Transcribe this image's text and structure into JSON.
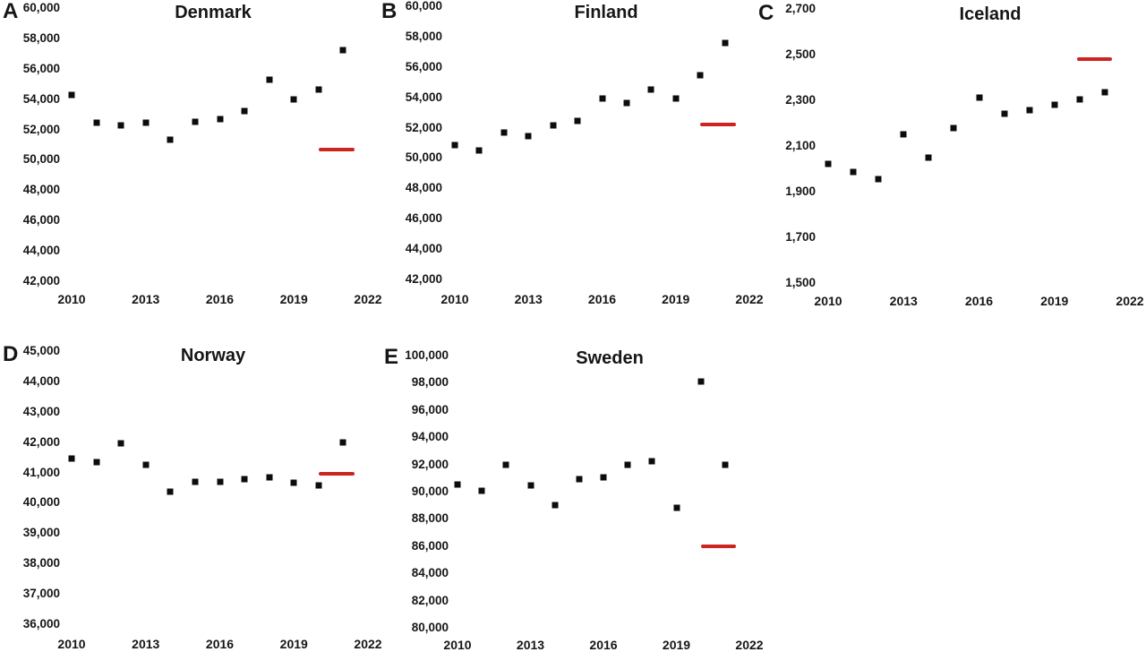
{
  "style": {
    "background": "#ffffff",
    "text_color": "#161616",
    "marker_color": "#0c0c0c",
    "reference_line_color": "#cc2420"
  },
  "chart_data": [
    {
      "type": "scatter",
      "panel_label": "A",
      "title": "Denmark",
      "marker": "black-square",
      "x": [
        2010,
        2011,
        2012,
        2013,
        2014,
        2015,
        2016,
        2017,
        2018,
        2019,
        2020,
        2021
      ],
      "values": [
        54300,
        52450,
        52250,
        52450,
        51350,
        52500,
        52700,
        53200,
        55250,
        54000,
        54650,
        57250
      ],
      "reference_line": {
        "value": 50700,
        "from_year": 2020.0,
        "to_year": 2021.45
      },
      "xlim": [
        2010,
        2022
      ],
      "ylim": [
        42000,
        60000
      ],
      "y_tick_labels": [
        "60,000",
        "58,000",
        "56,000",
        "54,000",
        "52,000",
        "50,000",
        "48,000",
        "46,000",
        "44,000",
        "42,000"
      ],
      "x_tick_years": [
        2010,
        2013,
        2016,
        2019,
        2022
      ],
      "x_tick_labels": [
        "2010",
        "2013",
        "2016",
        "2019",
        "2022"
      ],
      "grid": false,
      "legend": "none"
    },
    {
      "type": "scatter",
      "panel_label": "B",
      "title": "Finland",
      "marker": "black-square",
      "x": [
        2010,
        2011,
        2012,
        2013,
        2014,
        2015,
        2016,
        2017,
        2018,
        2019,
        2020,
        2021
      ],
      "values": [
        50850,
        50500,
        51700,
        51450,
        52150,
        52450,
        53900,
        53650,
        54500,
        53900,
        55450,
        57600
      ],
      "reference_line": {
        "value": 52200,
        "from_year": 2020.0,
        "to_year": 2021.45
      },
      "xlim": [
        2010,
        2022
      ],
      "ylim": [
        42000,
        60000
      ],
      "y_tick_labels": [
        "60,000",
        "58,000",
        "56,000",
        "54,000",
        "52,000",
        "50,000",
        "48,000",
        "46,000",
        "44,000",
        "42,000"
      ],
      "x_tick_years": [
        2010,
        2013,
        2016,
        2019,
        2022
      ],
      "x_tick_labels": [
        "2010",
        "2013",
        "2016",
        "2019",
        "2022"
      ],
      "grid": false,
      "legend": "none"
    },
    {
      "type": "scatter",
      "panel_label": "C",
      "title": "Iceland",
      "marker": "black-square",
      "x": [
        2010,
        2011,
        2012,
        2013,
        2014,
        2015,
        2016,
        2017,
        2018,
        2019,
        2020,
        2021
      ],
      "values": [
        2020,
        1985,
        1955,
        2150,
        2050,
        2180,
        2310,
        2240,
        2255,
        2280,
        2305,
        2335
      ],
      "reference_line": {
        "value": 2480,
        "from_year": 2019.9,
        "to_year": 2021.3
      },
      "xlim": [
        2010,
        2022
      ],
      "ylim": [
        1500,
        2700
      ],
      "y_tick_labels": [
        "2,700",
        "2,500",
        "2,300",
        "2,100",
        "1,900",
        "1,700",
        "1,500"
      ],
      "x_tick_years": [
        2010,
        2013,
        2016,
        2019,
        2022
      ],
      "x_tick_labels": [
        "2010",
        "2013",
        "2016",
        "2019",
        "2022"
      ],
      "grid": false,
      "legend": "none"
    },
    {
      "type": "scatter",
      "panel_label": "D",
      "title": "Norway",
      "marker": "black-square",
      "x": [
        2010,
        2011,
        2012,
        2013,
        2014,
        2015,
        2016,
        2017,
        2018,
        2019,
        2020,
        2021
      ],
      "values": [
        41450,
        41350,
        41950,
        41250,
        40380,
        40680,
        40700,
        40780,
        40830,
        40650,
        40580,
        42000
      ],
      "reference_line": {
        "value": 40950,
        "from_year": 2020.0,
        "to_year": 2021.45
      },
      "xlim": [
        2010,
        2022
      ],
      "ylim": [
        36000,
        45000
      ],
      "y_tick_labels": [
        "45,000",
        "44,000",
        "43,000",
        "42,000",
        "41,000",
        "40,000",
        "39,000",
        "38,000",
        "37,000",
        "36,000"
      ],
      "x_tick_years": [
        2010,
        2013,
        2016,
        2019,
        2022
      ],
      "x_tick_labels": [
        "2010",
        "2013",
        "2016",
        "2019",
        "2022"
      ],
      "grid": false,
      "legend": "none"
    },
    {
      "type": "scatter",
      "panel_label": "E",
      "title": "Sweden",
      "marker": "black-square",
      "x": [
        2010,
        2011,
        2012,
        2013,
        2014,
        2015,
        2016,
        2017,
        2018,
        2019,
        2020,
        2021
      ],
      "values": [
        90550,
        90050,
        91950,
        90450,
        89000,
        90900,
        91050,
        92000,
        92250,
        88800,
        98100,
        92000
      ],
      "reference_line": {
        "value": 86000,
        "from_year": 2020.0,
        "to_year": 2021.45
      },
      "xlim": [
        2010,
        2022
      ],
      "ylim": [
        80000,
        100000
      ],
      "y_tick_labels": [
        "100,000",
        "98,000",
        "96,000",
        "94,000",
        "92,000",
        "90,000",
        "88,000",
        "86,000",
        "84,000",
        "82,000",
        "80,000"
      ],
      "x_tick_years": [
        2010,
        2013,
        2016,
        2019,
        2022
      ],
      "x_tick_labels": [
        "2010",
        "2013",
        "2016",
        "2019",
        "2022"
      ],
      "grid": false,
      "legend": "none"
    }
  ]
}
